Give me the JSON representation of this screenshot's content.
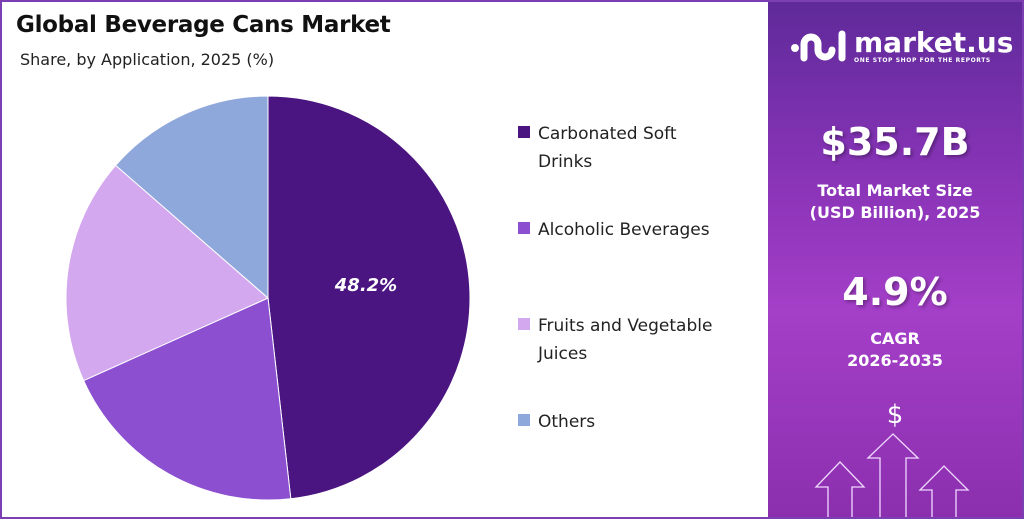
{
  "header": {
    "title": "Global Beverage Cans Market",
    "subtitle": "Share, by Application, 2025 (%)"
  },
  "chart_data": {
    "type": "pie",
    "title": "Global Beverage Cans Market",
    "subtitle": "Share, by Application, 2025 (%)",
    "categories": [
      "Carbonated Soft Drinks",
      "Alcoholic Beverages",
      "Fruits and Vegetable Juices",
      "Others"
    ],
    "values": [
      48.2,
      20.1,
      18.1,
      13.6
    ],
    "colors": [
      "#4a1580",
      "#8b4fd0",
      "#d4a8ee",
      "#8fa8dc"
    ],
    "data_labels": [
      "48.2%",
      "",
      "",
      ""
    ],
    "legend_placement": "right"
  },
  "legend": {
    "items": [
      {
        "label": "Carbonated Soft Drinks",
        "color": "#4a1580"
      },
      {
        "label": "Alcoholic Beverages",
        "color": "#8b4fd0"
      },
      {
        "label": "Fruits and Vegetable Juices",
        "color": "#d4a8ee"
      },
      {
        "label": "Others",
        "color": "#8fa8dc"
      }
    ]
  },
  "panel": {
    "logo_name": "market.us",
    "logo_tagline": "ONE STOP SHOP FOR THE REPORTS",
    "market_size": "$35.7B",
    "market_size_label": "Total Market Size (USD Billion), 2025",
    "cagr": "4.9%",
    "cagr_label": "CAGR",
    "cagr_period": "2026-2035",
    "dollar_symbol": "$"
  }
}
